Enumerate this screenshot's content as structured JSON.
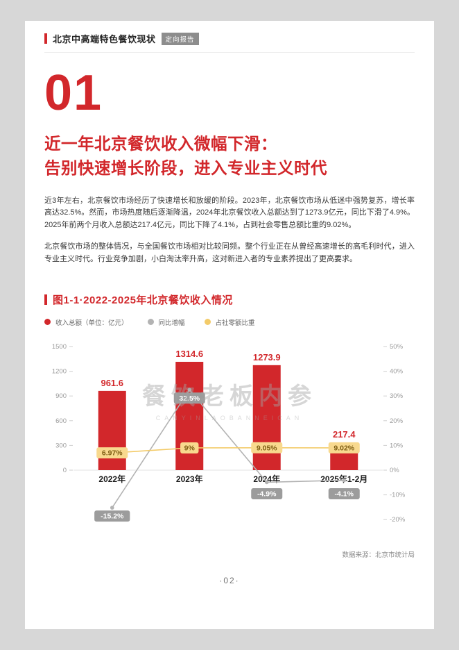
{
  "page": {
    "header": {
      "title": "北京中高端特色餐饮现状",
      "badge": "定向报告"
    },
    "chapter_number": "01",
    "heading": {
      "line1": "近一年北京餐饮收入微幅下滑：",
      "line2": "告别快速增长阶段，进入专业主义时代"
    },
    "paragraphs": [
      "近3年左右，北京餐饮市场经历了快速增长和放缓的阶段。2023年，北京餐饮市场从低迷中强势复苏，增长率高达32.5%。然而，市场热度随后逐渐降温，2024年北京餐饮收入总额达到了1273.9亿元，同比下滑了4.9%。2025年前两个月收入总额达217.4亿元，同比下降了4.1%，占到社会零售总额比重的9.02%。",
      "北京餐饮市场的整体情况，与全国餐饮市场相对比较同频。整个行业正在从曾经高速增长的高毛利时代，进入专业主义时代。行业竞争加剧，小白淘汰率升高，这对新进入者的专业素养提出了更高要求。"
    ],
    "figure_title": "图1-1·2022-2025年北京餐饮收入情况",
    "watermark": {
      "main": "餐饮老板内参",
      "sub": "CANYINLAOBANNEICAN"
    },
    "source": "数据来源：北京市统计局",
    "page_number": "·02·",
    "colors": {
      "accent_red": "#D2272B",
      "badge_gray": "#8d8d8d",
      "line_gray": "#B3B3B3",
      "line_yellow": "#F3CB69"
    }
  },
  "chart_data": {
    "type": "bar",
    "subtype": "combo-bar-line",
    "title": "图1-1·2022-2025年北京餐饮收入情况",
    "categories": [
      "2022年",
      "2023年",
      "2024年",
      "2025年1-2月"
    ],
    "series": [
      {
        "name": "收入总额（单位：亿元）",
        "type": "bar",
        "axis": "left",
        "color": "#D2272B",
        "label_fg": "#D2272B",
        "values": [
          961.6,
          1314.6,
          1273.9,
          217.4
        ],
        "labels": [
          "961.6",
          "1314.6",
          "1273.9",
          "217.4"
        ]
      },
      {
        "name": "同比增幅",
        "type": "line",
        "axis": "right",
        "color": "#B3B3B3",
        "label_bg": "#9C9C9C",
        "label_fg": "#FFFFFF",
        "label_offset": "below",
        "values": [
          -15.2,
          32.5,
          -4.9,
          -4.1
        ],
        "labels": [
          "-15.2%",
          "32.5%",
          "-4.9%",
          "-4.1%"
        ]
      },
      {
        "name": "占社零额比重",
        "type": "line",
        "axis": "right",
        "color": "#F3CB69",
        "label_bg": "#F8D98E",
        "label_fg": "#7D5D13",
        "label_offset": "center",
        "values": [
          6.97,
          9,
          9.05,
          9.02
        ],
        "labels": [
          "6.97%",
          "9%",
          "9.05%",
          "9.02%"
        ]
      }
    ],
    "left_axis": {
      "min": 0,
      "max": 1500,
      "ticks": [
        1500,
        1200,
        900,
        600,
        300,
        0
      ]
    },
    "right_axis": {
      "min": -20,
      "max": 50,
      "ticks": [
        "50%",
        "40%",
        "30%",
        "20%",
        "10%",
        "0%",
        "-10%",
        "-20%"
      ]
    },
    "legend_position": "top-left",
    "grid": false,
    "source": "数据来源：北京市统计局"
  }
}
